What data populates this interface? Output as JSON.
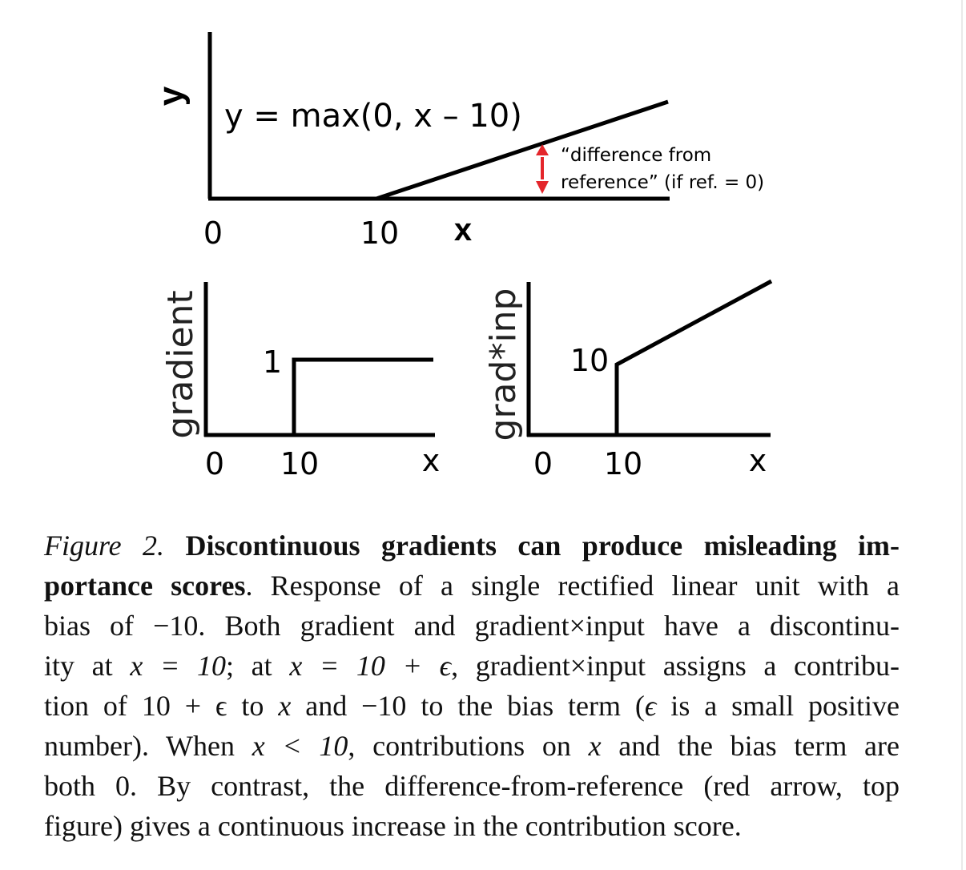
{
  "top_plot": {
    "y_axis_label": "y",
    "equation": "y = max(0, x – 10)",
    "annotation_line1": "“difference from",
    "annotation_line2": "reference” (if ref. = 0)",
    "x_tick_0": "0",
    "x_tick_10": "10",
    "x_axis_label": "x",
    "arrow_color": "#e4262b"
  },
  "left_plot": {
    "y_axis_label": "gradient",
    "value_label": "1",
    "x_tick_0": "0",
    "x_tick_10": "10",
    "x_axis_label": "x"
  },
  "right_plot": {
    "y_axis_label": "grad*inp",
    "value_label": "10",
    "x_tick_0": "0",
    "x_tick_10": "10",
    "x_axis_label": "x"
  },
  "caption": {
    "l1_label": "Figure 2.",
    "l1_bold": "Discontinuous gradients can produce misleading im-",
    "l2_bold": "portance scores",
    "l2_rest": ". Response of a single rectified linear unit with a",
    "l3_pre": "bias of ",
    "l3_math": "−10",
    "l3_post": ". Both gradient and gradient×input have a discontinu-",
    "l4_pre": "ity at ",
    "l4_math1": "x = 10",
    "l4_mid": "; at ",
    "l4_math2": "x = 10 + ϵ",
    "l4_post": ", gradient×input assigns a contribu-",
    "l5_pre": "tion of ",
    "l5_math1": "10 + ϵ",
    "l5_mid1": " to ",
    "l5_math2": "x",
    "l5_mid2": " and ",
    "l5_math3": "−10",
    "l5_mid3": " to the bias term (",
    "l5_math4": "ϵ",
    "l5_post": " is a small positive",
    "l6_pre": "number). When ",
    "l6_math1": "x < 10",
    "l6_mid": ", contributions on ",
    "l6_math2": "x",
    "l6_post": " and the bias term are",
    "l7": "both 0. By contrast, the difference-from-reference (red arrow, top",
    "l8": "figure) gives a continuous increase in the contribution score."
  }
}
